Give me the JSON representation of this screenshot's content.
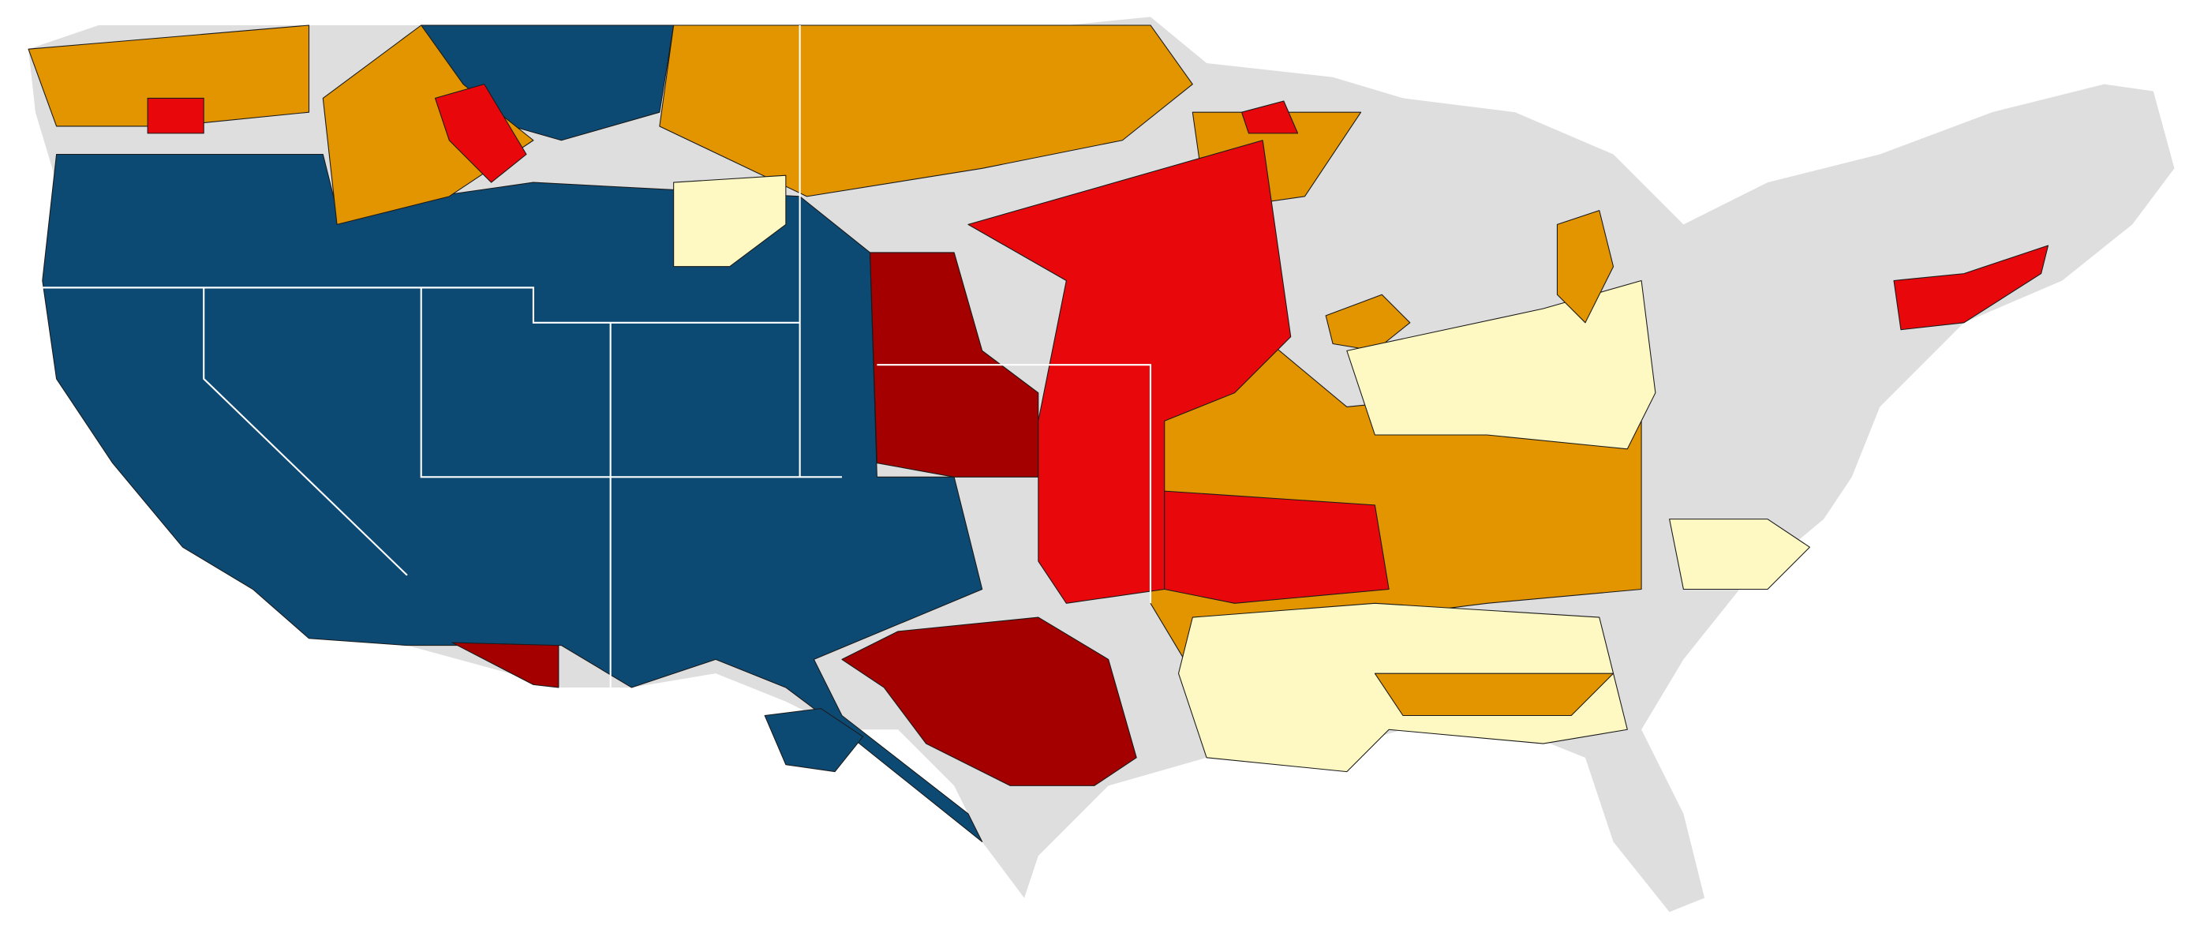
{
  "map": {
    "land_color": "#dedede",
    "colors": [
      "#0d4a73",
      "#a40000",
      "#e8080c",
      "#e39500",
      "#fef9c2"
    ],
    "border_color": "#1a1a1a"
  }
}
